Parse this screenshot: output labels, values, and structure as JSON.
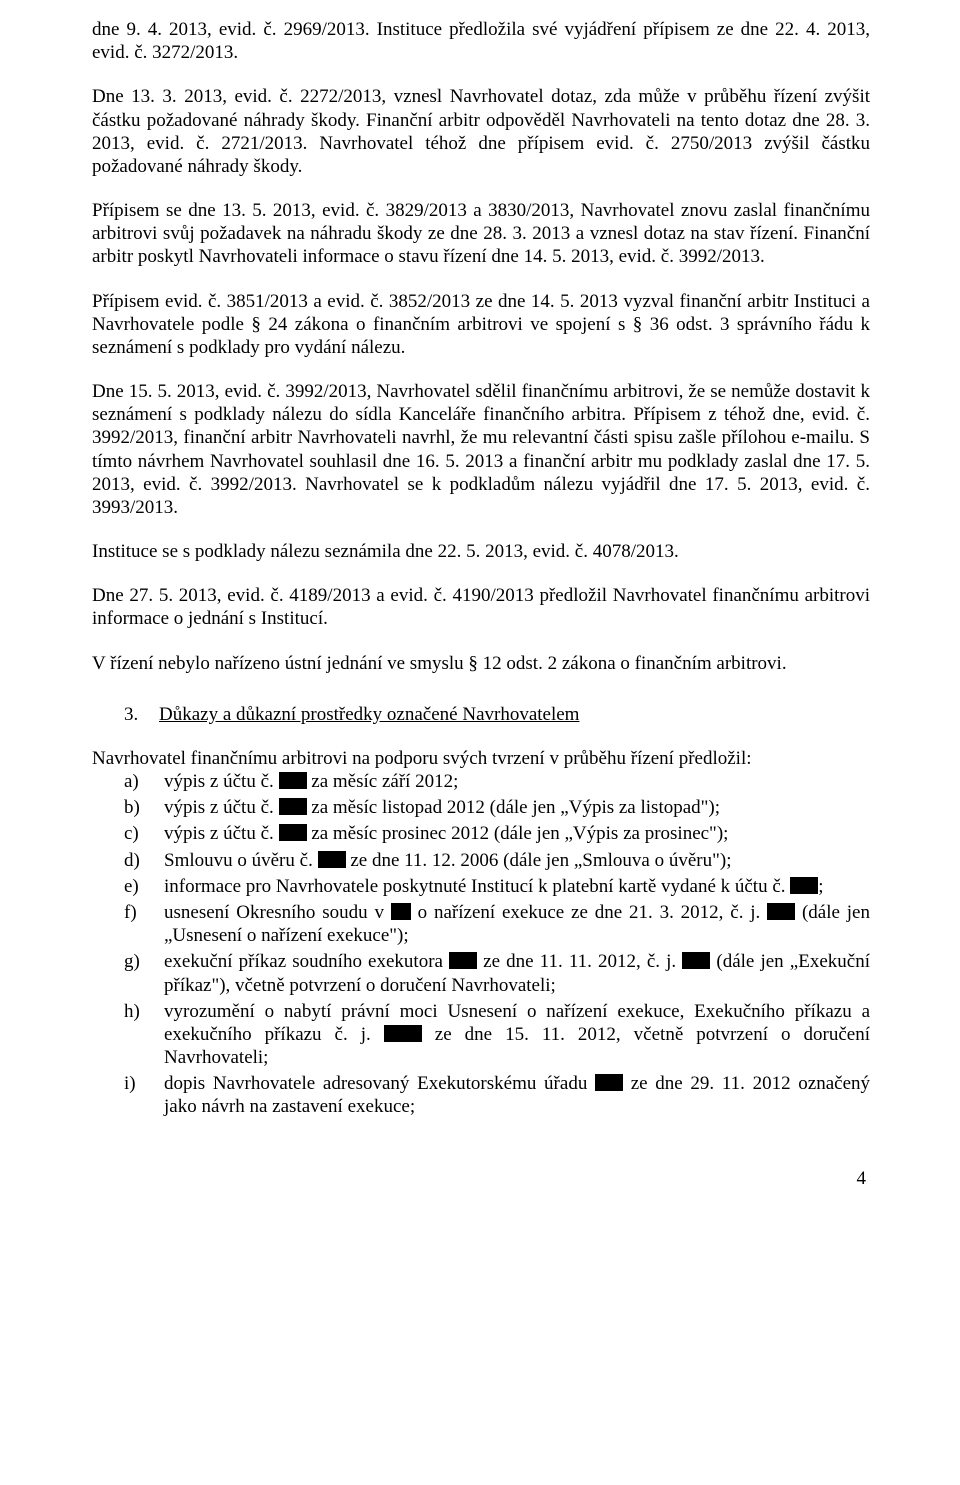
{
  "paragraphs": {
    "p1a": "dne 9. 4. 2013, evid. č. 2969/2013. Instituce předložila své vyjádření přípisem ze dne 22. 4. 2013, evid. č. 3272/2013.",
    "p2": "Dne 13. 3. 2013, evid. č. 2272/2013, vznesl Navrhovatel dotaz, zda může v průběhu řízení zvýšit částku požadované náhrady škody. Finanční arbitr odpověděl Navrhovateli na tento dotaz dne 28. 3. 2013, evid. č. 2721/2013. Navrhovatel téhož dne přípisem evid. č. 2750/2013 zvýšil částku požadované náhrady škody.",
    "p3": "Přípisem se dne 13. 5. 2013, evid. č. 3829/2013 a 3830/2013, Navrhovatel znovu zaslal finančnímu arbitrovi svůj požadavek na náhradu škody ze dne 28. 3. 2013 a vznesl dotaz na stav řízení. Finanční arbitr poskytl Navrhovateli informace o stavu řízení dne 14. 5. 2013, evid. č. 3992/2013.",
    "p4": "Přípisem evid. č. 3851/2013 a evid. č. 3852/2013 ze dne 14. 5. 2013 vyzval finanční arbitr Instituci a Navrhovatele podle § 24 zákona o finančním arbitrovi ve spojení s § 36 odst. 3 správního řádu k seznámení s podklady pro vydání nálezu.",
    "p5": "Dne 15. 5. 2013, evid. č. 3992/2013, Navrhovatel sdělil finančnímu arbitrovi, že se nemůže dostavit k seznámení s podklady nálezu do sídla Kanceláře finančního arbitra. Přípisem z téhož dne, evid. č. 3992/2013, finanční arbitr Navrhovateli navrhl, že mu relevantní části spisu zašle přílohou e-mailu. S tímto návrhem Navrhovatel souhlasil dne 16. 5. 2013 a finanční arbitr mu podklady zaslal dne 17. 5. 2013, evid. č. 3992/2013. Navrhovatel se k podkladům nálezu vyjádřil dne 17. 5. 2013, evid. č. 3993/2013.",
    "p6": "Instituce se s podklady nálezu seznámila dne 22. 5. 2013, evid. č. 4078/2013.",
    "p7": "Dne 27. 5. 2013, evid. č. 4189/2013 a evid. č. 4190/2013 předložil Navrhovatel finančnímu arbitrovi informace o jednání s Institucí.",
    "p8": "V řízení nebylo nařízeno ústní jednání ve smyslu § 12 odst. 2 zákona o finančním arbitrovi."
  },
  "section": {
    "number": "3.",
    "title": "Důkazy a důkazní prostředky označené Navrhovatelem"
  },
  "intro": "Navrhovatel finančnímu arbitrovi na podporu svých tvrzení v průběhu řízení předložil:",
  "items": {
    "a": {
      "m": "a)",
      "pre": "výpis z účtu č. ",
      "post": " za měsíc září 2012;"
    },
    "b": {
      "m": "b)",
      "pre": "výpis z účtu č. ",
      "post": " za měsíc listopad 2012 (dále jen „Výpis za listopad\");"
    },
    "c": {
      "m": "c)",
      "pre": "výpis z účtu č. ",
      "post": " za měsíc prosinec 2012 (dále jen „Výpis za prosinec\");"
    },
    "d": {
      "m": "d)",
      "pre": "Smlouvu o úvěru č. ",
      "post": " ze dne 11. 12. 2006 (dále jen „Smlouva o úvěru\");"
    },
    "e": {
      "m": "e)",
      "pre": "informace pro Navrhovatele poskytnuté Institucí k platební kartě vydané k účtu č. ",
      "post": ";"
    },
    "f": {
      "m": "f)",
      "pre": "usnesení Okresního soudu v ",
      "mid": " o nařízení exekuce ze dne 21. 3. 2012, č. j. ",
      "post": " (dále jen „Usnesení o nařízení exekuce\");"
    },
    "g": {
      "m": "g)",
      "pre": "exekuční příkaz soudního exekutora ",
      "mid": " ze dne 11. 11. 2012, č. j. ",
      "post": " (dále jen „Exekuční příkaz\"), včetně potvrzení o doručení Navrhovateli;"
    },
    "h": {
      "m": "h)",
      "pre": "vyrozumění o nabytí právní moci Usnesení o nařízení exekuce, Exekučního příkazu a exekučního příkazu č. j. ",
      "post": " ze dne 15. 11. 2012, včetně potvrzení o doručení Navrhovateli;"
    },
    "i": {
      "m": "i)",
      "pre": "dopis Navrhovatele adresovaný Exekutorskému úřadu ",
      "post": " ze dne 29. 11. 2012 označený jako návrh na zastavení exekuce;"
    }
  },
  "pageNumber": "4"
}
